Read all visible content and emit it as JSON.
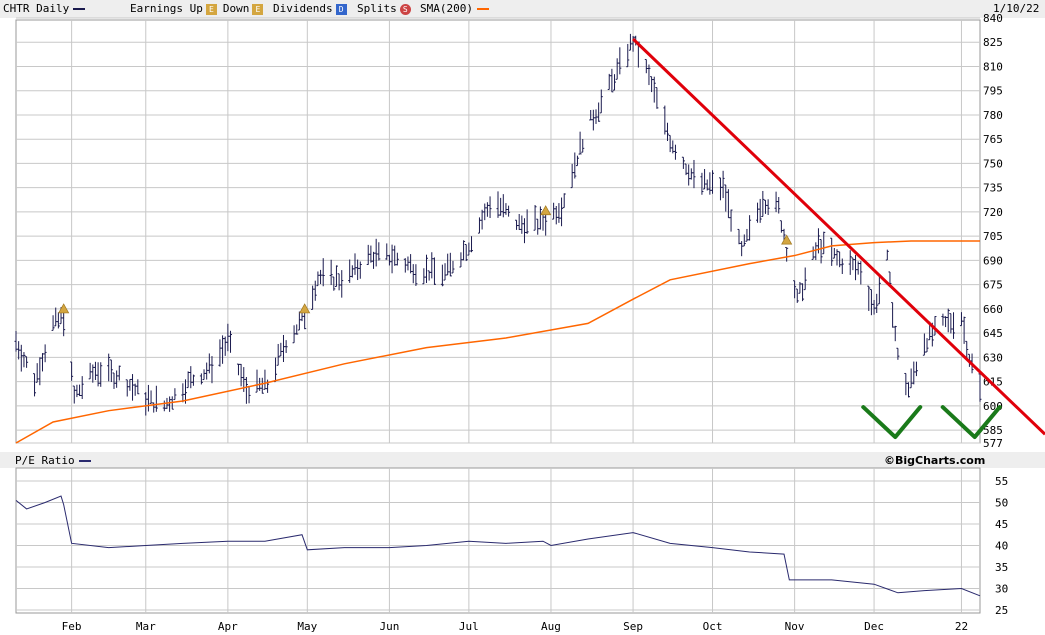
{
  "legend": {
    "symbol_daily": "CHTR Daily",
    "earnings_up": "Earnings Up",
    "earnings_down": "Down",
    "dividends": "Dividends",
    "dividends_badge": "D",
    "splits": "Splits",
    "splits_badge": "S",
    "sma": "SMA(200)",
    "date": "1/10/22",
    "earnings_badge": "E"
  },
  "pe_panel": {
    "label": "P/E Ratio",
    "credit": "©BigCharts.com"
  },
  "colors": {
    "price_bars": "#1a1a4e",
    "sma": "#ff6600",
    "trendline": "#e0000a",
    "checkmark": "#1a7a1a",
    "pe_line": "#2a2a6e",
    "grid": "#c8c8c8",
    "earnings_marker": "#d4a640"
  },
  "chart_data": [
    {
      "type": "line",
      "panel": "price",
      "y_ticks": [
        577,
        585,
        600,
        615,
        630,
        645,
        660,
        675,
        690,
        705,
        720,
        735,
        750,
        765,
        780,
        795,
        810,
        825,
        840
      ],
      "x_ticks": [
        "Feb",
        "Mar",
        "Apr",
        "May",
        "Jun",
        "Jul",
        "Aug",
        "Sep",
        "Oct",
        "Nov",
        "Dec",
        "22"
      ],
      "series": [
        {
          "name": "SMA(200)",
          "x": [
            "2021-01-11",
            "2021-01-25",
            "2021-02-15",
            "2021-03-15",
            "2021-04-15",
            "2021-05-15",
            "2021-06-15",
            "2021-07-15",
            "2021-08-15",
            "2021-09-01",
            "2021-09-15",
            "2021-10-15",
            "2021-11-01",
            "2021-11-15",
            "2021-12-01",
            "2021-12-15",
            "2022-01-10"
          ],
          "values": [
            577,
            590,
            597,
            603,
            614,
            626,
            636,
            642,
            651,
            666,
            678,
            688,
            693,
            699,
            701,
            702,
            702
          ]
        },
        {
          "name": "Red trendline",
          "x": [
            "2021-09-01",
            "2022-01-10"
          ],
          "values": [
            827,
            621
          ]
        }
      ],
      "price_path": {
        "x": [
          "2021-01-11",
          "2021-01-18",
          "2021-01-25",
          "2021-01-29",
          "2021-02-02",
          "2021-02-10",
          "2021-02-20",
          "2021-03-01",
          "2021-03-08",
          "2021-03-18",
          "2021-03-25",
          "2021-04-01",
          "2021-04-08",
          "2021-04-16",
          "2021-04-23",
          "2021-04-30",
          "2021-05-05",
          "2021-05-15",
          "2021-05-25",
          "2021-06-03",
          "2021-06-12",
          "2021-06-22",
          "2021-07-01",
          "2021-07-10",
          "2021-07-20",
          "2021-07-28",
          "2021-08-05",
          "2021-08-14",
          "2021-08-24",
          "2021-09-01",
          "2021-09-06",
          "2021-09-15",
          "2021-09-25",
          "2021-10-05",
          "2021-10-12",
          "2021-10-20",
          "2021-10-26",
          "2021-11-02",
          "2021-11-10",
          "2021-11-18",
          "2021-11-26",
          "2021-12-01",
          "2021-12-06",
          "2021-12-10",
          "2021-12-14",
          "2021-12-20",
          "2021-12-27",
          "2022-01-03",
          "2022-01-06",
          "2022-01-10"
        ],
        "values": [
          640,
          615,
          650,
          655,
          606,
          622,
          618,
          604,
          600,
          616,
          623,
          640,
          610,
          613,
          640,
          655,
          680,
          678,
          693,
          692,
          684,
          682,
          700,
          728,
          712,
          713,
          724,
          770,
          800,
          826,
          808,
          765,
          738,
          735,
          695,
          728,
          722,
          665,
          700,
          690,
          684,
          660,
          690,
          630,
          610,
          640,
          650,
          655,
          630,
          610
        ],
        "bar_range": 12
      },
      "earnings_markers": [
        "2021-01-29",
        "2021-04-30",
        "2021-07-30",
        "2021-10-29"
      ]
    },
    {
      "type": "line",
      "panel": "pe",
      "y_ticks": [
        25,
        30,
        35,
        40,
        45,
        50,
        55
      ],
      "series": [
        {
          "name": "P/E Ratio",
          "x": [
            "2021-01-11",
            "2021-01-15",
            "2021-01-22",
            "2021-01-28",
            "2021-01-29",
            "2021-02-01",
            "2021-02-15",
            "2021-03-01",
            "2021-03-15",
            "2021-04-01",
            "2021-04-15",
            "2021-04-29",
            "2021-05-01",
            "2021-05-15",
            "2021-06-01",
            "2021-06-15",
            "2021-07-01",
            "2021-07-15",
            "2021-07-29",
            "2021-08-01",
            "2021-08-15",
            "2021-09-01",
            "2021-09-15",
            "2021-10-01",
            "2021-10-15",
            "2021-10-28",
            "2021-10-30",
            "2021-11-15",
            "2021-12-01",
            "2021-12-10",
            "2021-12-20",
            "2022-01-03",
            "2022-01-10"
          ],
          "values": [
            50.5,
            48.5,
            50,
            51.5,
            49.5,
            40.5,
            39.5,
            40,
            40.5,
            41,
            41,
            42.5,
            39,
            39.5,
            39.5,
            40,
            41,
            40.5,
            41,
            40,
            41.5,
            43,
            40.5,
            39.5,
            38.5,
            38,
            32,
            32,
            31,
            29,
            29.5,
            30,
            28.3
          ]
        }
      ]
    }
  ]
}
